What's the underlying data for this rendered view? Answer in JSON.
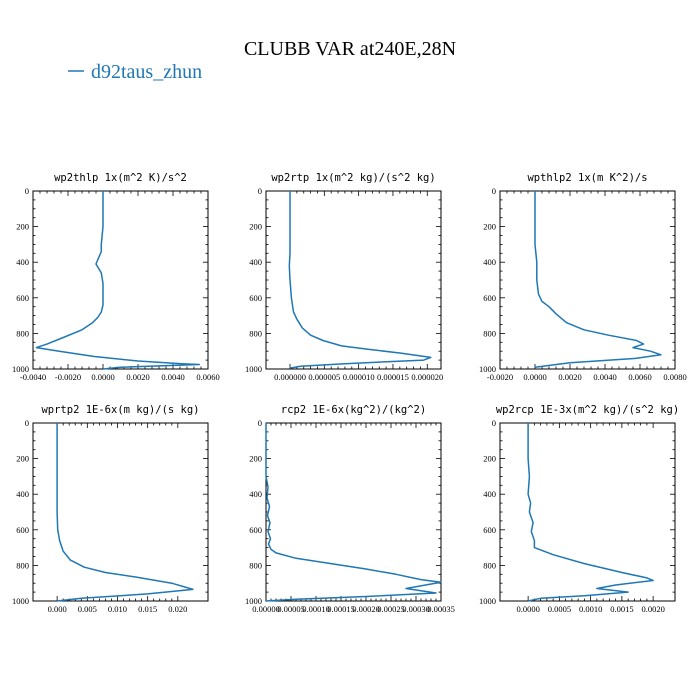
{
  "figure": {
    "title": "CLUBB VAR at240E,28N",
    "legend": [
      {
        "name": "d92taus_zhun",
        "color": "#1f77b4"
      }
    ]
  },
  "chart_data": [
    {
      "type": "line",
      "title": "wp2thlp   1x(m^2 K)/s^2",
      "series_name": "d92taus_zhun",
      "xlim": [
        -0.004,
        0.006
      ],
      "xticks": [
        -0.004,
        -0.002,
        0.0,
        0.002,
        0.004,
        0.006
      ],
      "xtick_labels": [
        "-0.0040",
        "-0.0020",
        "0.0000",
        "0.0020",
        "0.0040",
        "0.0060"
      ],
      "ylim": [
        1000,
        0
      ],
      "yticks": [
        0,
        200,
        400,
        600,
        800,
        1000
      ],
      "ytick_labels": [
        "0",
        "200",
        "400",
        "600",
        "800",
        "1000"
      ],
      "x": [
        0.0,
        0.0,
        -0.0001,
        -0.0001,
        -0.0004,
        -0.0001,
        0.0,
        0.0,
        0.0,
        -0.0001,
        -0.0003,
        -0.0006,
        -0.0012,
        -0.0022,
        -0.0032,
        -0.0038,
        -0.0025,
        -0.0005,
        0.002,
        0.0045,
        0.0055,
        0.001,
        0.0
      ],
      "y": [
        0,
        200,
        300,
        340,
        410,
        460,
        520,
        580,
        640,
        680,
        710,
        740,
        780,
        820,
        860,
        880,
        900,
        930,
        955,
        970,
        975,
        990,
        1000
      ]
    },
    {
      "type": "line",
      "title": "wp2rtp   1x(m^2 kg)/(s^2 kg)",
      "series_name": "d92taus_zhun",
      "xlim": [
        -3.5e-06,
        2.2e-05
      ],
      "xticks": [
        0.0,
        5e-06,
        1e-05,
        1.5e-05,
        2e-05
      ],
      "xtick_labels": [
        "0.000000",
        "0.000005",
        "0.000010",
        "0.000015",
        "0.000020"
      ],
      "ylim": [
        1000,
        0
      ],
      "yticks": [
        0,
        200,
        400,
        600,
        800,
        1000
      ],
      "ytick_labels": [
        "0",
        "200",
        "400",
        "600",
        "800",
        "1000"
      ],
      "x": [
        0.0,
        0.0,
        0.0,
        -1e-07,
        0.0,
        2e-07,
        5e-07,
        1e-06,
        1.8e-06,
        3e-06,
        4.8e-06,
        7.5e-06,
        1.15e-05,
        1.6e-05,
        2.05e-05,
        1.95e-05,
        8e-06,
        1.5e-06,
        0.0
      ],
      "y": [
        0,
        200,
        350,
        420,
        500,
        600,
        680,
        720,
        770,
        810,
        840,
        870,
        890,
        910,
        935,
        950,
        970,
        985,
        995
      ]
    },
    {
      "type": "line",
      "title": "wpthlp2  1x(m K^2)/s",
      "series_name": "d92taus_zhun",
      "xlim": [
        -0.002,
        0.008
      ],
      "xticks": [
        -0.002,
        0.0,
        0.002,
        0.004,
        0.006,
        0.008
      ],
      "xtick_labels": [
        "-0.0020",
        "0.0000",
        "0.0020",
        "0.0040",
        "0.0060",
        "0.0080"
      ],
      "ylim": [
        1000,
        0
      ],
      "yticks": [
        0,
        200,
        400,
        600,
        800,
        1000
      ],
      "ytick_labels": [
        "0",
        "200",
        "400",
        "600",
        "800",
        "1000"
      ],
      "x": [
        0.0,
        0.0,
        0.0,
        0.0001,
        0.0001,
        0.0002,
        0.0004,
        0.0008,
        0.0012,
        0.0018,
        0.0028,
        0.0042,
        0.0058,
        0.0062,
        0.0056,
        0.0066,
        0.0072,
        0.0058,
        0.002,
        0.0
      ],
      "y": [
        0,
        150,
        300,
        400,
        500,
        580,
        620,
        650,
        690,
        740,
        780,
        810,
        840,
        860,
        880,
        900,
        920,
        940,
        965,
        990
      ]
    },
    {
      "type": "line",
      "title": "wprtp2   1E-6x(m kg)/(s kg)",
      "series_name": "d92taus_zhun",
      "xlim": [
        -0.004,
        0.025
      ],
      "xticks": [
        0.0,
        0.005,
        0.01,
        0.015,
        0.02
      ],
      "xtick_labels": [
        "0.000",
        "0.005",
        "0.010",
        "0.015",
        "0.020"
      ],
      "ylim": [
        1000,
        0
      ],
      "yticks": [
        0,
        200,
        400,
        600,
        800,
        1000
      ],
      "ytick_labels": [
        "0",
        "200",
        "400",
        "600",
        "800",
        "1000"
      ],
      "x": [
        0.0,
        0.0,
        0.0,
        0.0001,
        0.0004,
        0.001,
        0.0022,
        0.0045,
        0.008,
        0.013,
        0.019,
        0.0225,
        0.015,
        0.004,
        0.0
      ],
      "y": [
        0,
        200,
        500,
        600,
        660,
        720,
        770,
        810,
        840,
        865,
        900,
        935,
        960,
        985,
        1000
      ]
    },
    {
      "type": "line",
      "title": "rcp2   1E-6x(kg^2)/(kg^2)",
      "series_name": "d92taus_zhun",
      "xlim": [
        0.0,
        0.00035
      ],
      "xticks": [
        0.0,
        5e-05,
        0.0001,
        0.00015,
        0.0002,
        0.00025,
        0.0003,
        0.00035
      ],
      "xtick_labels": [
        "0.00000",
        "0.00005",
        "0.00010",
        "0.00015",
        "0.00020",
        "0.00025",
        "0.00030",
        "0.00035"
      ],
      "ylim": [
        1000,
        0
      ],
      "yticks": [
        0,
        200,
        400,
        600,
        800,
        1000
      ],
      "ytick_labels": [
        "0",
        "200",
        "400",
        "600",
        "800",
        "1000"
      ],
      "x": [
        0.0,
        0.0,
        4e-06,
        2e-06,
        7e-06,
        3e-06,
        8e-06,
        4e-06,
        9e-06,
        5e-06,
        1e-05,
        2e-05,
        6e-05,
        0.00013,
        0.0002,
        0.00026,
        0.00031,
        0.00035,
        0.00028,
        0.00034,
        0.0002,
        6e-05,
        0.0
      ],
      "y": [
        0,
        300,
        360,
        420,
        470,
        520,
        560,
        610,
        650,
        680,
        710,
        730,
        760,
        790,
        820,
        850,
        880,
        895,
        930,
        955,
        975,
        990,
        1000
      ]
    },
    {
      "type": "line",
      "title": "wp2rcp  1E-3x(m^2 kg)/(s^2 kg)",
      "series_name": "d92taus_zhun",
      "xlim": [
        -0.00045,
        0.00235
      ],
      "xticks": [
        0.0,
        0.0005,
        0.001,
        0.0015,
        0.002
      ],
      "xtick_labels": [
        "0.0000",
        "0.0005",
        "0.0010",
        "0.0015",
        "0.0020"
      ],
      "ylim": [
        1000,
        0
      ],
      "yticks": [
        0,
        200,
        400,
        600,
        800,
        1000
      ],
      "ytick_labels": [
        "0",
        "200",
        "400",
        "600",
        "800",
        "1000"
      ],
      "x": [
        0.0,
        0.0,
        2e-05,
        0.0,
        4e-05,
        2e-05,
        8e-05,
        5e-05,
        0.0001,
        0.0001,
        0.0004,
        0.0009,
        0.0015,
        0.0019,
        0.002,
        0.0014,
        0.0011,
        0.0016,
        0.0009,
        0.0002,
        0.0
      ],
      "y": [
        0,
        200,
        300,
        400,
        450,
        500,
        560,
        610,
        660,
        700,
        740,
        790,
        840,
        870,
        885,
        910,
        930,
        950,
        970,
        985,
        1000
      ]
    }
  ]
}
